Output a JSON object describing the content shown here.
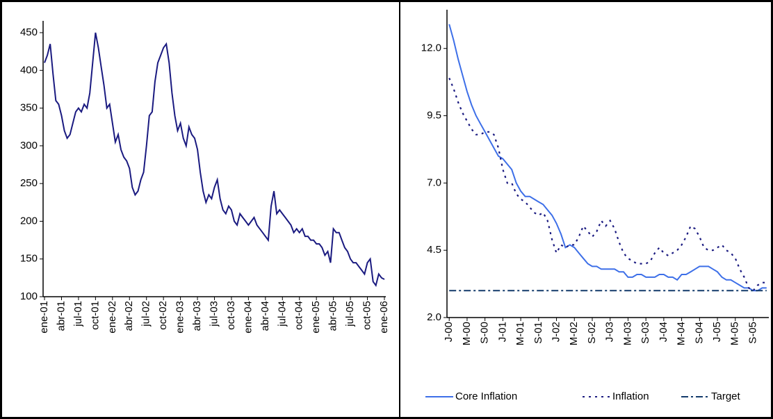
{
  "chart_data": [
    {
      "type": "line",
      "color": "#1a1a80",
      "categories": [
        "ene-01",
        null,
        null,
        null,
        null,
        null,
        "abr-01",
        null,
        null,
        null,
        null,
        null,
        "jul-01",
        null,
        null,
        null,
        null,
        null,
        "oct-01",
        null,
        null,
        null,
        null,
        null,
        "ene-02",
        null,
        null,
        null,
        null,
        null,
        "abr-02",
        null,
        null,
        null,
        null,
        null,
        "jul-02",
        null,
        null,
        null,
        null,
        null,
        "oct-02",
        null,
        null,
        null,
        null,
        null,
        "ene-03",
        null,
        null,
        null,
        null,
        null,
        "abr-03",
        null,
        null,
        null,
        null,
        null,
        "jul-03",
        null,
        null,
        null,
        null,
        null,
        "oct-03",
        null,
        null,
        null,
        null,
        null,
        "ene-04",
        null,
        null,
        null,
        null,
        null,
        "abr-04",
        null,
        null,
        null,
        null,
        null,
        "jul-04",
        null,
        null,
        null,
        null,
        null,
        "oct-04",
        null,
        null,
        null,
        null,
        null,
        "ene-05",
        null,
        null,
        null,
        null,
        null,
        "abr-05",
        null,
        null,
        null,
        null,
        null,
        "jul-05",
        null,
        null,
        null,
        null,
        null,
        "oct-05",
        null,
        null,
        null,
        null,
        null,
        "ene-06"
      ],
      "values": [
        410,
        420,
        435,
        395,
        360,
        355,
        340,
        320,
        310,
        315,
        330,
        345,
        350,
        345,
        355,
        350,
        370,
        410,
        450,
        430,
        405,
        380,
        350,
        355,
        330,
        305,
        315,
        295,
        285,
        280,
        270,
        245,
        235,
        240,
        255,
        265,
        300,
        340,
        345,
        385,
        410,
        420,
        430,
        435,
        410,
        370,
        340,
        320,
        330,
        310,
        300,
        325,
        315,
        310,
        295,
        265,
        240,
        225,
        235,
        230,
        245,
        255,
        230,
        215,
        210,
        220,
        215,
        200,
        195,
        210,
        205,
        200,
        195,
        200,
        205,
        195,
        190,
        185,
        180,
        175,
        220,
        240,
        210,
        215,
        210,
        205,
        200,
        195,
        185,
        190,
        185,
        190,
        180,
        180,
        175,
        175,
        170,
        170,
        165,
        155,
        160,
        145,
        190,
        185,
        185,
        175,
        165,
        160,
        150,
        145,
        145,
        140,
        135,
        130,
        145,
        150,
        120,
        115,
        130,
        125,
        123
      ],
      "ylim": [
        100,
        450
      ],
      "yticks": [
        100,
        150,
        200,
        250,
        300,
        350,
        400,
        450
      ]
    },
    {
      "type": "line",
      "legend": "bottom",
      "categories": [
        "J-00",
        null,
        null,
        null,
        "M-00",
        null,
        null,
        null,
        "S-00",
        null,
        null,
        null,
        "J-01",
        null,
        null,
        null,
        "M-01",
        null,
        null,
        null,
        "S-01",
        null,
        null,
        null,
        "J-02",
        null,
        null,
        null,
        "M-02",
        null,
        null,
        null,
        "S-02",
        null,
        null,
        null,
        "J-03",
        null,
        null,
        null,
        "M-03",
        null,
        null,
        null,
        "S-03",
        null,
        null,
        null,
        "J-04",
        null,
        null,
        null,
        "M-04",
        null,
        null,
        null,
        "S-04",
        null,
        null,
        null,
        "J-05",
        null,
        null,
        null,
        "M-05",
        null,
        null,
        null,
        "S-05",
        null,
        null,
        null
      ],
      "series": [
        {
          "name": "Core Inflation",
          "color": "#3d6fe8",
          "dash": "solid",
          "values": [
            12.9,
            12.3,
            11.6,
            11.0,
            10.4,
            9.9,
            9.5,
            9.2,
            8.9,
            8.6,
            8.3,
            8.0,
            7.9,
            7.7,
            7.5,
            7.0,
            6.7,
            6.5,
            6.5,
            6.4,
            6.3,
            6.2,
            6.0,
            5.8,
            5.5,
            5.1,
            4.6,
            4.7,
            4.6,
            4.4,
            4.2,
            4.0,
            3.9,
            3.9,
            3.8,
            3.8,
            3.8,
            3.8,
            3.7,
            3.7,
            3.5,
            3.5,
            3.6,
            3.6,
            3.5,
            3.5,
            3.5,
            3.6,
            3.6,
            3.5,
            3.5,
            3.4,
            3.6,
            3.6,
            3.7,
            3.8,
            3.9,
            3.9,
            3.9,
            3.8,
            3.7,
            3.5,
            3.4,
            3.4,
            3.3,
            3.2,
            3.1,
            3.1,
            3.0,
            3.0,
            3.1,
            3.1
          ]
        },
        {
          "name": "Inflation",
          "color": "#1a1a80",
          "dash": "dot",
          "values": [
            10.9,
            10.5,
            10.0,
            9.6,
            9.3,
            9.0,
            8.8,
            8.8,
            8.9,
            8.9,
            8.8,
            8.3,
            7.5,
            7.0,
            7.0,
            6.6,
            6.4,
            6.3,
            6.1,
            5.9,
            5.8,
            5.9,
            5.6,
            4.9,
            4.4,
            4.7,
            4.6,
            4.7,
            4.7,
            5.0,
            5.4,
            5.2,
            5.0,
            5.2,
            5.6,
            5.4,
            5.6,
            5.3,
            4.8,
            4.4,
            4.2,
            4.1,
            4.0,
            4.0,
            4.0,
            4.1,
            4.4,
            4.6,
            4.4,
            4.3,
            4.4,
            4.5,
            4.7,
            5.0,
            5.4,
            5.3,
            5.0,
            4.6,
            4.5,
            4.5,
            4.6,
            4.7,
            4.5,
            4.4,
            4.2,
            3.8,
            3.5,
            3.1,
            3.0,
            3.2,
            3.3,
            3.3
          ]
        },
        {
          "name": "Target",
          "color": "#123a6a",
          "dash": "dashdot",
          "values": [
            3.0,
            3.0,
            3.0,
            3.0,
            3.0,
            3.0,
            3.0,
            3.0,
            3.0,
            3.0,
            3.0,
            3.0,
            3.0,
            3.0,
            3.0,
            3.0,
            3.0,
            3.0,
            3.0,
            3.0,
            3.0,
            3.0,
            3.0,
            3.0,
            3.0,
            3.0,
            3.0,
            3.0,
            3.0,
            3.0,
            3.0,
            3.0,
            3.0,
            3.0,
            3.0,
            3.0,
            3.0,
            3.0,
            3.0,
            3.0,
            3.0,
            3.0,
            3.0,
            3.0,
            3.0,
            3.0,
            3.0,
            3.0,
            3.0,
            3.0,
            3.0,
            3.0,
            3.0,
            3.0,
            3.0,
            3.0,
            3.0,
            3.0,
            3.0,
            3.0,
            3.0,
            3.0,
            3.0,
            3.0,
            3.0,
            3.0,
            3.0,
            3.0,
            3.0,
            3.0,
            3.0,
            3.0
          ]
        }
      ],
      "ylim": [
        2,
        13
      ],
      "yticks": [
        {
          "value": 2,
          "label": "2.0"
        },
        4.5,
        {
          "value": 7,
          "label": "7.0"
        },
        9.5,
        {
          "value": 12,
          "label": "12.0"
        }
      ]
    }
  ]
}
